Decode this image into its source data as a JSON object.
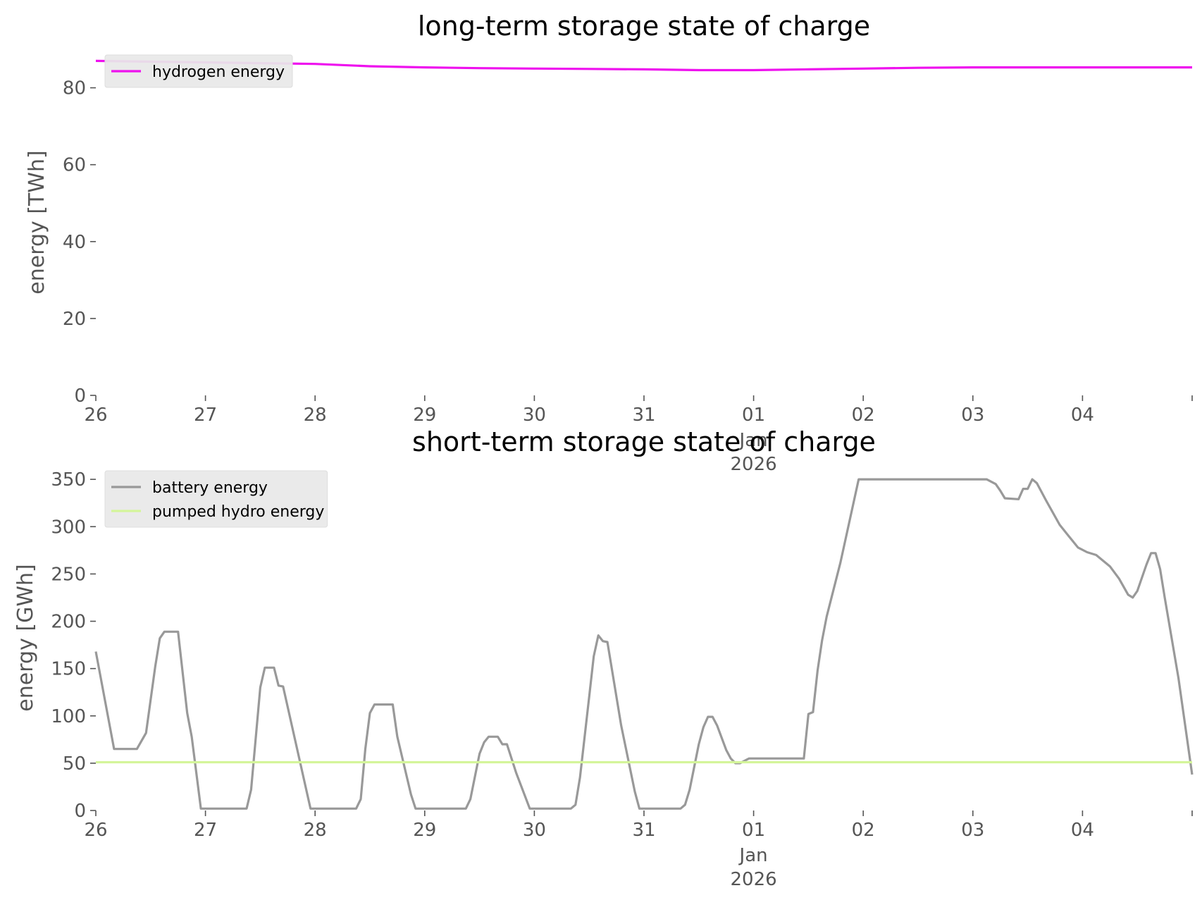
{
  "chart_data": [
    {
      "type": "line",
      "title": "long-term storage state of charge",
      "xlabel": "",
      "ylabel": "energy [TWh]",
      "ylim": [
        0,
        90
      ],
      "yticks": [
        0,
        20,
        40,
        60,
        80
      ],
      "grid": false,
      "legend": "upper-left",
      "x_range": [
        "2025-12-26",
        "2026-01-05"
      ],
      "xticks": [
        {
          "date": "2025-12-26",
          "label": "26",
          "sub": []
        },
        {
          "date": "2025-12-27",
          "label": "27",
          "sub": []
        },
        {
          "date": "2025-12-28",
          "label": "28",
          "sub": []
        },
        {
          "date": "2025-12-29",
          "label": "29",
          "sub": []
        },
        {
          "date": "2025-12-30",
          "label": "30",
          "sub": []
        },
        {
          "date": "2025-12-31",
          "label": "31",
          "sub": []
        },
        {
          "date": "2026-01-01",
          "label": "01",
          "sub": [
            "Jan",
            "2026"
          ]
        },
        {
          "date": "2026-01-02",
          "label": "02",
          "sub": []
        },
        {
          "date": "2026-01-03",
          "label": "03",
          "sub": []
        },
        {
          "date": "2026-01-04",
          "label": "04",
          "sub": []
        }
      ],
      "series": [
        {
          "name": "hydrogen energy",
          "color": "#ee11ee",
          "points": [
            [
              "2025-12-26 00:00",
              87.0
            ],
            [
              "2025-12-26 12:00",
              86.8
            ],
            [
              "2025-12-27 00:00",
              86.6
            ],
            [
              "2025-12-27 12:00",
              86.4
            ],
            [
              "2025-12-28 00:00",
              86.2
            ],
            [
              "2025-12-28 12:00",
              85.6
            ],
            [
              "2025-12-29 00:00",
              85.3
            ],
            [
              "2025-12-29 12:00",
              85.1
            ],
            [
              "2025-12-30 00:00",
              85.0
            ],
            [
              "2025-12-30 12:00",
              84.9
            ],
            [
              "2025-12-31 00:00",
              84.8
            ],
            [
              "2025-12-31 12:00",
              84.6
            ],
            [
              "2026-01-01 00:00",
              84.6
            ],
            [
              "2026-01-01 12:00",
              84.8
            ],
            [
              "2026-01-02 00:00",
              85.0
            ],
            [
              "2026-01-02 12:00",
              85.2
            ],
            [
              "2026-01-03 00:00",
              85.3
            ],
            [
              "2026-01-03 12:00",
              85.3
            ],
            [
              "2026-01-04 00:00",
              85.3
            ],
            [
              "2026-01-04 12:00",
              85.3
            ],
            [
              "2026-01-05 00:00",
              85.3
            ]
          ]
        }
      ]
    },
    {
      "type": "line",
      "title": "short-term storage state of charge",
      "xlabel": "",
      "ylabel": "energy [GWh]",
      "ylim": [
        0,
        365
      ],
      "yticks": [
        0,
        50,
        100,
        150,
        200,
        250,
        300,
        350
      ],
      "grid": false,
      "legend": "upper-left",
      "x_range": [
        "2025-12-26",
        "2026-01-05"
      ],
      "xticks": [
        {
          "date": "2025-12-26",
          "label": "26",
          "sub": []
        },
        {
          "date": "2025-12-27",
          "label": "27",
          "sub": []
        },
        {
          "date": "2025-12-28",
          "label": "28",
          "sub": []
        },
        {
          "date": "2025-12-29",
          "label": "29",
          "sub": []
        },
        {
          "date": "2025-12-30",
          "label": "30",
          "sub": []
        },
        {
          "date": "2025-12-31",
          "label": "31",
          "sub": []
        },
        {
          "date": "2026-01-01",
          "label": "01",
          "sub": [
            "Jan",
            "2026"
          ]
        },
        {
          "date": "2026-01-02",
          "label": "02",
          "sub": []
        },
        {
          "date": "2026-01-03",
          "label": "03",
          "sub": []
        },
        {
          "date": "2026-01-04",
          "label": "04",
          "sub": []
        }
      ],
      "series": [
        {
          "name": "battery energy",
          "color": "#999999",
          "points": [
            [
              "2025-12-26 00:00",
              168
            ],
            [
              "2025-12-26 04:00",
              65
            ],
            [
              "2025-12-26 09:00",
              65
            ],
            [
              "2025-12-26 11:00",
              82
            ],
            [
              "2025-12-26 13:00",
              152
            ],
            [
              "2025-12-26 14:00",
              182
            ],
            [
              "2025-12-26 15:00",
              189
            ],
            [
              "2025-12-26 18:00",
              189
            ],
            [
              "2025-12-26 20:00",
              103
            ],
            [
              "2025-12-26 21:00",
              78
            ],
            [
              "2025-12-26 23:00",
              2
            ],
            [
              "2025-12-27 09:00",
              2
            ],
            [
              "2025-12-27 10:00",
              22
            ],
            [
              "2025-12-27 12:00",
              130
            ],
            [
              "2025-12-27 13:00",
              151
            ],
            [
              "2025-12-27 15:00",
              151
            ],
            [
              "2025-12-27 16:00",
              132
            ],
            [
              "2025-12-27 17:00",
              131
            ],
            [
              "2025-12-27 23:00",
              2
            ],
            [
              "2025-12-28 09:00",
              2
            ],
            [
              "2025-12-28 10:00",
              12
            ],
            [
              "2025-12-28 11:00",
              65
            ],
            [
              "2025-12-28 12:00",
              103
            ],
            [
              "2025-12-28 13:00",
              112
            ],
            [
              "2025-12-28 17:00",
              112
            ],
            [
              "2025-12-28 18:00",
              78
            ],
            [
              "2025-12-28 21:00",
              17
            ],
            [
              "2025-12-28 22:00",
              2
            ],
            [
              "2025-12-29 09:00",
              2
            ],
            [
              "2025-12-29 10:00",
              12
            ],
            [
              "2025-12-29 12:00",
              60
            ],
            [
              "2025-12-29 13:00",
              72
            ],
            [
              "2025-12-29 14:00",
              78
            ],
            [
              "2025-12-29 16:00",
              78
            ],
            [
              "2025-12-29 17:00",
              70
            ],
            [
              "2025-12-29 18:00",
              70
            ],
            [
              "2025-12-29 20:00",
              40
            ],
            [
              "2025-12-29 23:00",
              2
            ],
            [
              "2025-12-30 08:00",
              2
            ],
            [
              "2025-12-30 09:00",
              6
            ],
            [
              "2025-12-30 10:00",
              35
            ],
            [
              "2025-12-30 12:00",
              120
            ],
            [
              "2025-12-30 13:00",
              163
            ],
            [
              "2025-12-30 14:00",
              185
            ],
            [
              "2025-12-30 15:00",
              179
            ],
            [
              "2025-12-30 16:00",
              178
            ],
            [
              "2025-12-30 19:00",
              90
            ],
            [
              "2025-12-30 22:00",
              20
            ],
            [
              "2025-12-30 23:00",
              2
            ],
            [
              "2025-12-31 08:00",
              2
            ],
            [
              "2025-12-31 09:00",
              6
            ],
            [
              "2025-12-31 10:00",
              22
            ],
            [
              "2025-12-31 12:00",
              70
            ],
            [
              "2025-12-31 13:00",
              88
            ],
            [
              "2025-12-31 14:00",
              99
            ],
            [
              "2025-12-31 15:00",
              99
            ],
            [
              "2025-12-31 16:00",
              90
            ],
            [
              "2025-12-31 18:00",
              64
            ],
            [
              "2025-12-31 19:00",
              55
            ],
            [
              "2025-12-31 20:00",
              50
            ],
            [
              "2025-12-31 21:00",
              50
            ],
            [
              "2025-12-31 23:00",
              55
            ],
            [
              "2026-01-01 11:00",
              55
            ],
            [
              "2026-01-01 12:00",
              102
            ],
            [
              "2026-01-01 13:00",
              104
            ],
            [
              "2026-01-01 14:00",
              148
            ],
            [
              "2026-01-01 15:00",
              180
            ],
            [
              "2026-01-01 16:00",
              205
            ],
            [
              "2026-01-01 19:00",
              262
            ],
            [
              "2026-01-01 23:00",
              350
            ],
            [
              "2026-01-03 03:00",
              350
            ],
            [
              "2026-01-03 05:00",
              345
            ],
            [
              "2026-01-03 06:00",
              338
            ],
            [
              "2026-01-03 07:00",
              330
            ],
            [
              "2026-01-03 10:00",
              329
            ],
            [
              "2026-01-03 11:00",
              340
            ],
            [
              "2026-01-03 12:00",
              340
            ],
            [
              "2026-01-03 13:00",
              350
            ],
            [
              "2026-01-03 14:00",
              346
            ],
            [
              "2026-01-03 16:00",
              328
            ],
            [
              "2026-01-03 19:00",
              302
            ],
            [
              "2026-01-03 21:00",
              290
            ],
            [
              "2026-01-03 23:00",
              278
            ],
            [
              "2026-01-04 01:00",
              273
            ],
            [
              "2026-01-04 03:00",
              270
            ],
            [
              "2026-01-04 06:00",
              258
            ],
            [
              "2026-01-04 08:00",
              245
            ],
            [
              "2026-01-04 10:00",
              228
            ],
            [
              "2026-01-04 11:00",
              225
            ],
            [
              "2026-01-04 12:00",
              232
            ],
            [
              "2026-01-04 14:00",
              260
            ],
            [
              "2026-01-04 15:00",
              272
            ],
            [
              "2026-01-04 16:00",
              272
            ],
            [
              "2026-01-04 17:00",
              255
            ],
            [
              "2026-01-04 18:00",
              225
            ],
            [
              "2026-01-04 21:00",
              140
            ],
            [
              "2026-01-05 00:00",
              38
            ]
          ]
        },
        {
          "name": "pumped hydro energy",
          "color": "#d4f59a",
          "points": [
            [
              "2025-12-26 00:00",
              51
            ],
            [
              "2026-01-05 00:00",
              51
            ]
          ]
        }
      ]
    }
  ]
}
